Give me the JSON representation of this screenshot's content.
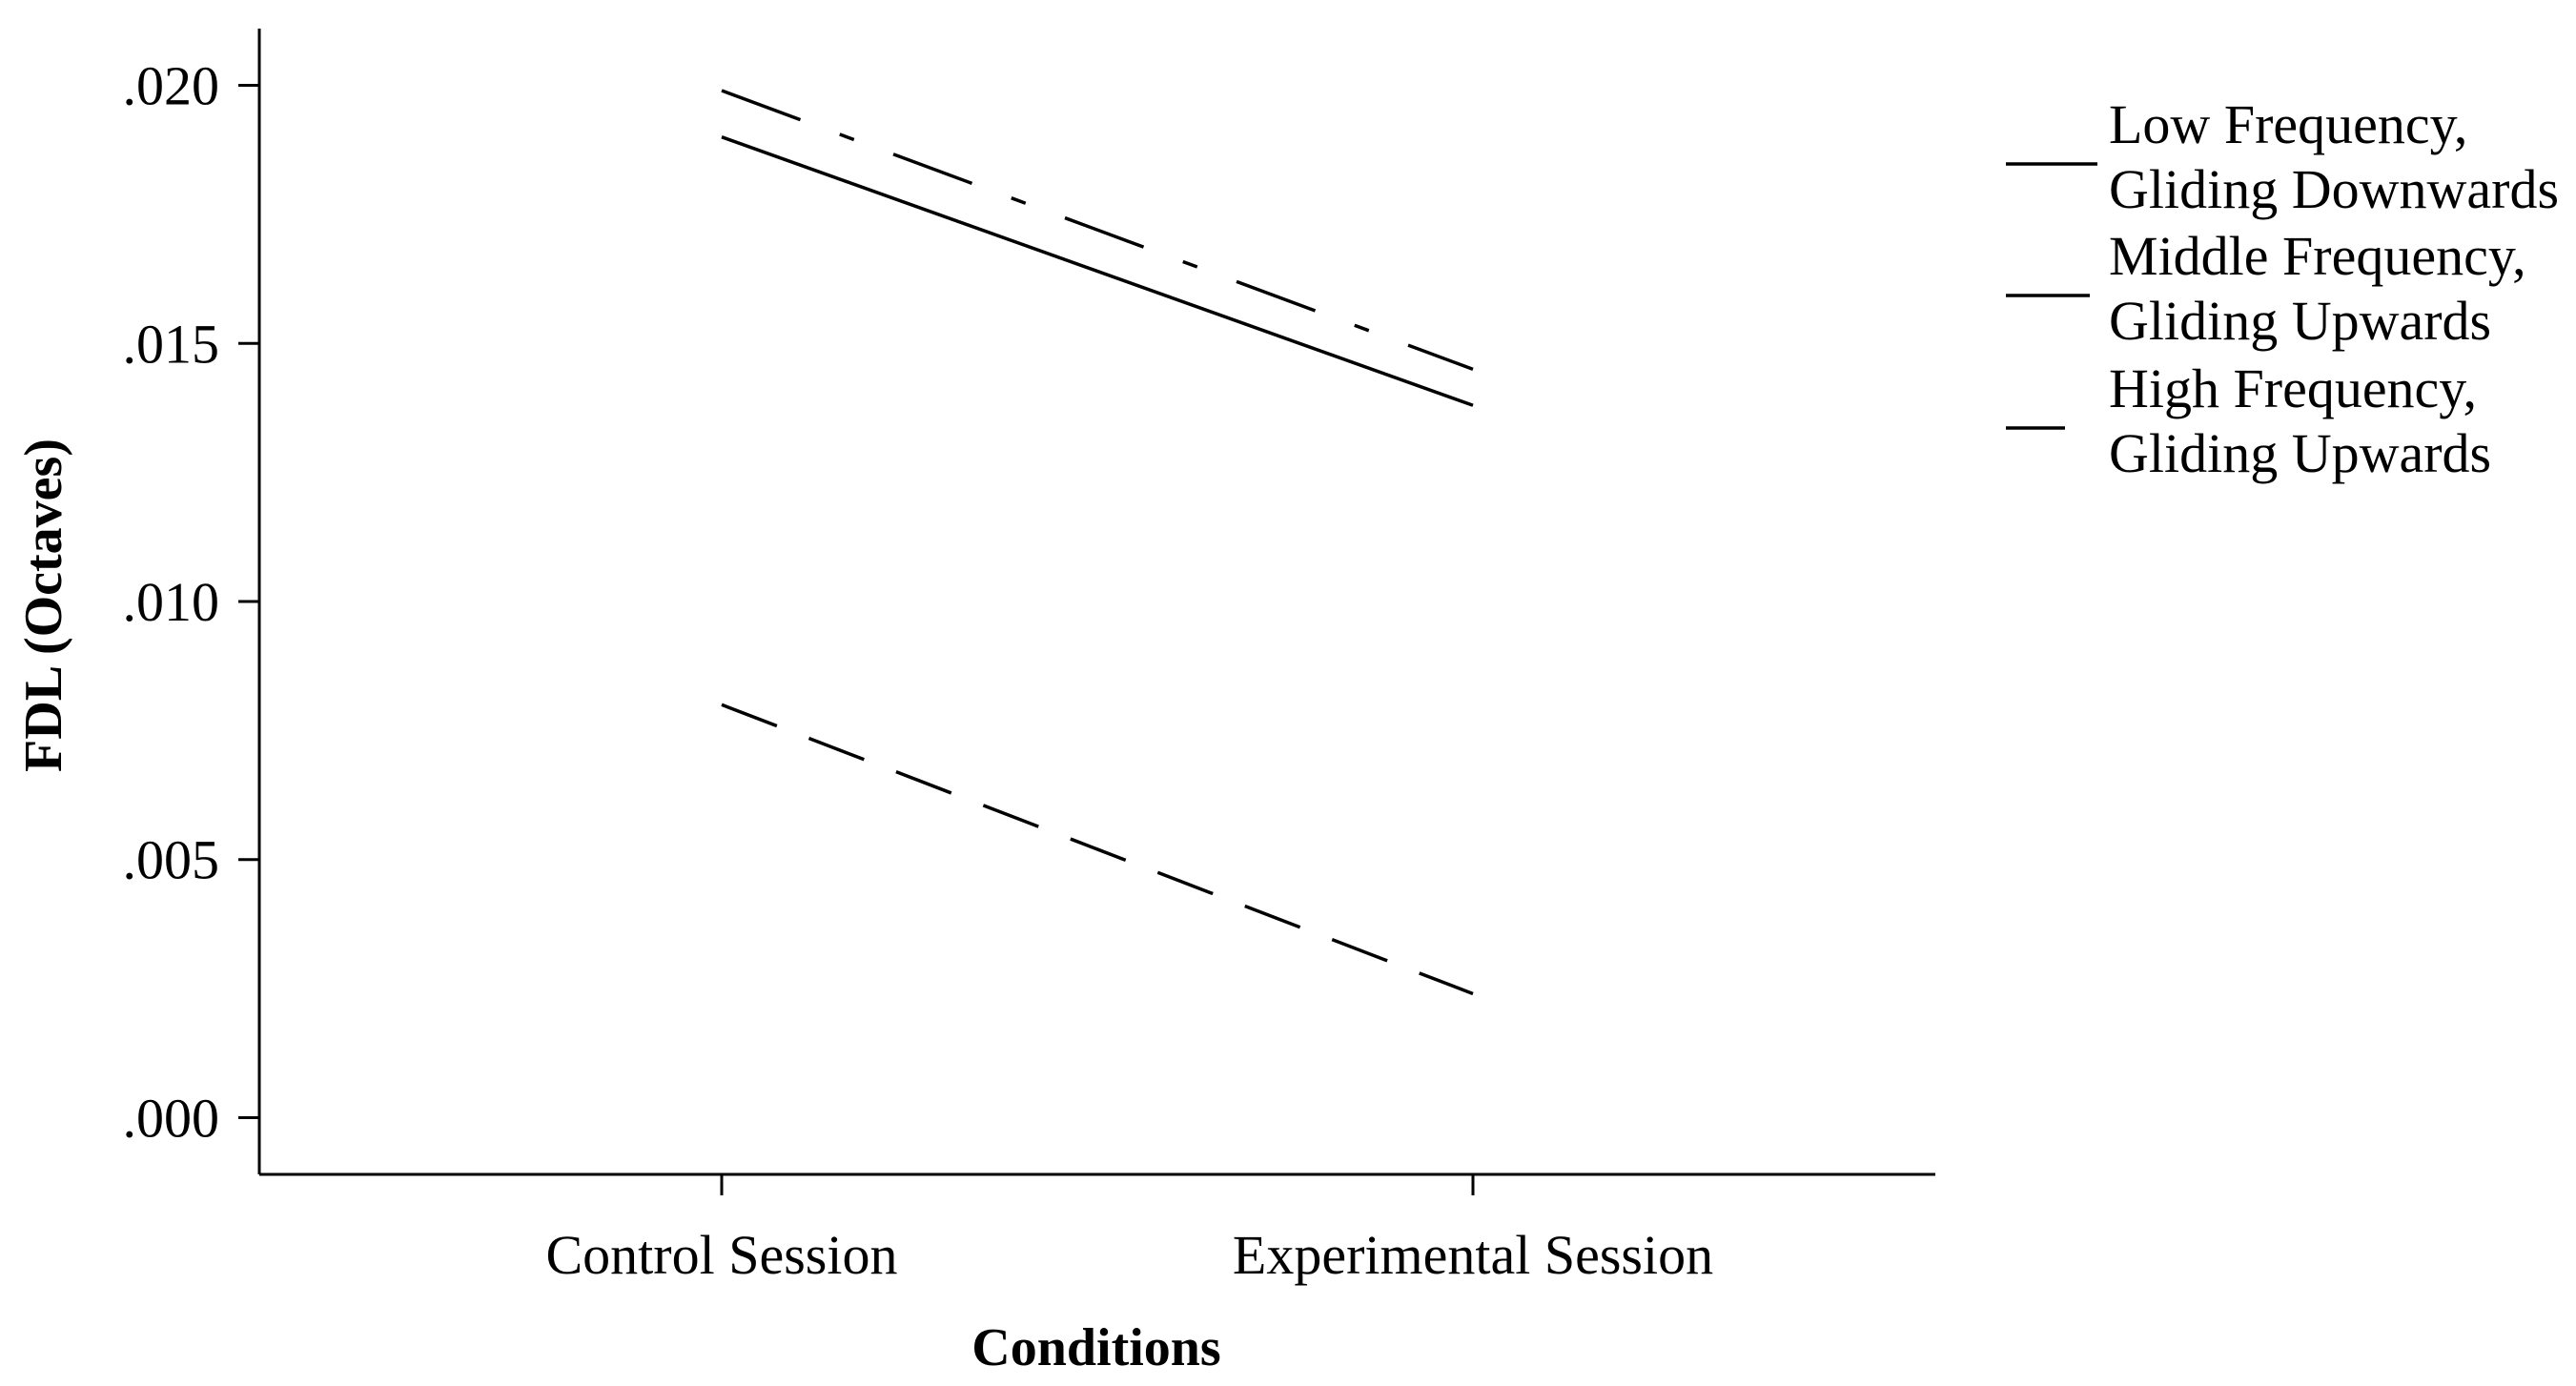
{
  "chart_data": {
    "type": "line",
    "xlabel": "Conditions",
    "ylabel": "FDL (Octaves)",
    "categories": [
      "Control Session",
      "Experimental Session"
    ],
    "ylim": [
      -0.0011,
      0.0211
    ],
    "yticks": [
      {
        "value": 0.0,
        "label": ".000"
      },
      {
        "value": 0.005,
        "label": ".005"
      },
      {
        "value": 0.01,
        "label": ".010"
      },
      {
        "value": 0.015,
        "label": ".015"
      },
      {
        "value": 0.02,
        "label": ".020"
      }
    ],
    "grid": false,
    "legend_position": "top-right",
    "series": [
      {
        "name": "Low Frequency, Gliding Downwards",
        "legend_lines": [
          "Low Frequency,",
          "Gliding Downwards"
        ],
        "style": "solid",
        "values": [
          0.019,
          0.0138
        ]
      },
      {
        "name": "Middle Frequency, Gliding Upwards",
        "legend_lines": [
          "Middle Frequency,",
          "Gliding Upwards"
        ],
        "style": "dashdot",
        "values": [
          0.0199,
          0.0145
        ]
      },
      {
        "name": "High Frequency, Gliding Upwards",
        "legend_lines": [
          "High Frequency,",
          "Gliding Upwards"
        ],
        "style": "dashed",
        "values": [
          0.008,
          0.0024
        ]
      }
    ]
  }
}
